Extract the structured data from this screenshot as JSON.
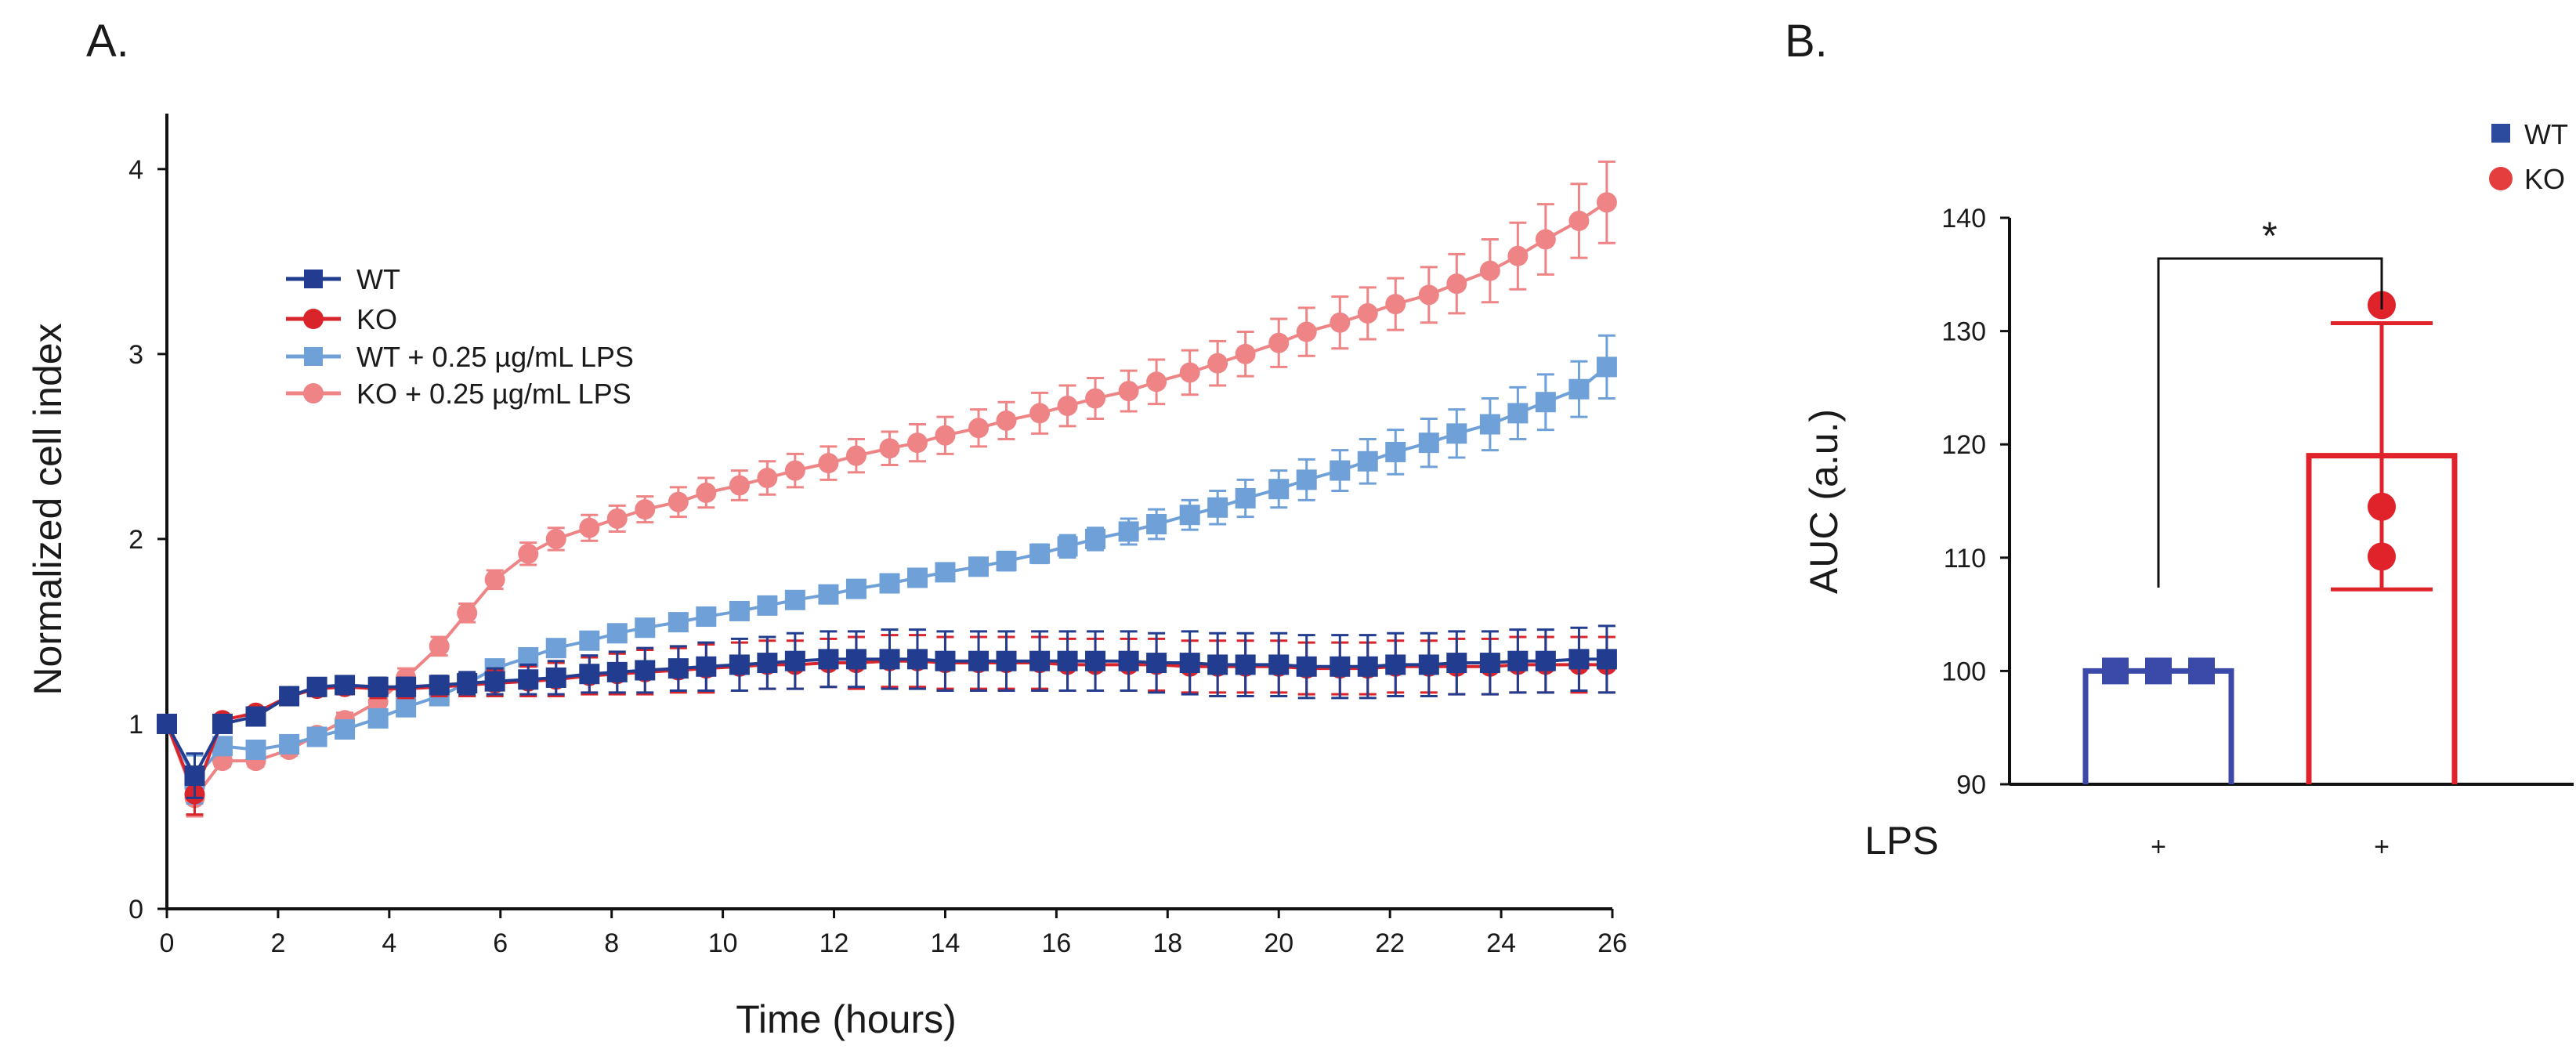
{
  "panels": {
    "a_label": "A.",
    "b_label": "B."
  },
  "chart_data": [
    {
      "type": "line",
      "title": "",
      "xlabel": "Time (hours)",
      "ylabel": "Normalized cell index",
      "xlim": [
        0,
        26
      ],
      "ylim": [
        0,
        4.3
      ],
      "x_ticks": [
        "0",
        "2",
        "4",
        "6",
        "8",
        "10",
        "12",
        "14",
        "16",
        "18",
        "20",
        "22",
        "24",
        "26"
      ],
      "y_ticks": [
        "0",
        "1",
        "2",
        "3",
        "4"
      ],
      "legend_position": "top-left",
      "series": [
        {
          "name": "WT",
          "color": "#223d8f",
          "marker": "square",
          "x": [
            0,
            0.5,
            1,
            1.6,
            2.2,
            2.7,
            3.2,
            3.8,
            4.3,
            4.9,
            5.4,
            5.9,
            6.5,
            7.0,
            7.6,
            8.1,
            8.6,
            9.2,
            9.7,
            10.3,
            10.8,
            11.3,
            11.9,
            12.4,
            13.0,
            13.5,
            14.0,
            14.6,
            15.1,
            15.7,
            16.2,
            16.7,
            17.3,
            17.8,
            18.4,
            18.9,
            19.4,
            20.0,
            20.5,
            21.1,
            21.6,
            22.1,
            22.7,
            23.2,
            23.8,
            24.3,
            24.8,
            25.4,
            25.9
          ],
          "values": [
            1.0,
            0.72,
            1.0,
            1.04,
            1.15,
            1.2,
            1.21,
            1.2,
            1.2,
            1.21,
            1.22,
            1.23,
            1.24,
            1.25,
            1.27,
            1.28,
            1.29,
            1.3,
            1.31,
            1.32,
            1.33,
            1.34,
            1.35,
            1.35,
            1.35,
            1.35,
            1.34,
            1.34,
            1.34,
            1.34,
            1.34,
            1.34,
            1.34,
            1.33,
            1.33,
            1.32,
            1.32,
            1.32,
            1.31,
            1.31,
            1.31,
            1.32,
            1.32,
            1.33,
            1.33,
            1.34,
            1.34,
            1.35,
            1.35
          ],
          "errors": [
            0,
            0.12,
            0.02,
            0.03,
            0.04,
            0.04,
            0.04,
            0.05,
            0.05,
            0.05,
            0.06,
            0.07,
            0.08,
            0.09,
            0.1,
            0.11,
            0.12,
            0.12,
            0.13,
            0.14,
            0.14,
            0.15,
            0.15,
            0.15,
            0.16,
            0.16,
            0.16,
            0.16,
            0.16,
            0.16,
            0.16,
            0.16,
            0.16,
            0.16,
            0.17,
            0.17,
            0.17,
            0.17,
            0.17,
            0.17,
            0.17,
            0.17,
            0.17,
            0.17,
            0.17,
            0.17,
            0.17,
            0.17,
            0.18
          ]
        },
        {
          "name": "KO",
          "color": "#d9242b",
          "marker": "circle",
          "x": [
            0,
            0.5,
            1,
            1.6,
            2.2,
            2.7,
            3.2,
            3.8,
            4.3,
            4.9,
            5.4,
            5.9,
            6.5,
            7.0,
            7.6,
            8.1,
            8.6,
            9.2,
            9.7,
            10.3,
            10.8,
            11.3,
            11.9,
            12.4,
            13.0,
            13.5,
            14.0,
            14.6,
            15.1,
            15.7,
            16.2,
            16.7,
            17.3,
            17.8,
            18.4,
            18.9,
            19.4,
            20.0,
            20.5,
            21.1,
            21.6,
            22.1,
            22.7,
            23.2,
            23.8,
            24.3,
            24.8,
            25.4,
            25.9
          ],
          "values": [
            1.0,
            0.62,
            1.02,
            1.06,
            1.15,
            1.19,
            1.2,
            1.19,
            1.19,
            1.2,
            1.21,
            1.22,
            1.23,
            1.24,
            1.26,
            1.27,
            1.28,
            1.29,
            1.3,
            1.31,
            1.32,
            1.32,
            1.33,
            1.33,
            1.34,
            1.34,
            1.33,
            1.33,
            1.33,
            1.33,
            1.32,
            1.32,
            1.32,
            1.32,
            1.31,
            1.31,
            1.31,
            1.31,
            1.3,
            1.3,
            1.3,
            1.31,
            1.31,
            1.31,
            1.31,
            1.32,
            1.32,
            1.32,
            1.32
          ],
          "errors": [
            0,
            0.11,
            0.02,
            0.03,
            0.04,
            0.04,
            0.04,
            0.05,
            0.05,
            0.05,
            0.06,
            0.07,
            0.08,
            0.09,
            0.1,
            0.11,
            0.12,
            0.12,
            0.13,
            0.13,
            0.13,
            0.13,
            0.13,
            0.14,
            0.14,
            0.14,
            0.14,
            0.14,
            0.14,
            0.14,
            0.14,
            0.14,
            0.14,
            0.14,
            0.14,
            0.14,
            0.14,
            0.14,
            0.14,
            0.14,
            0.14,
            0.14,
            0.14,
            0.15,
            0.15,
            0.15,
            0.15,
            0.15,
            0.15
          ]
        },
        {
          "name": "WT + 0.25 µg/mL LPS",
          "color": "#6fa1d8",
          "marker": "square",
          "x": [
            0,
            0.5,
            1,
            1.6,
            2.2,
            2.7,
            3.2,
            3.8,
            4.3,
            4.9,
            5.4,
            5.9,
            6.5,
            7.0,
            7.6,
            8.1,
            8.6,
            9.2,
            9.7,
            10.3,
            10.8,
            11.3,
            11.9,
            12.4,
            13.0,
            13.5,
            14.0,
            14.6,
            15.1,
            15.7,
            16.2,
            16.7,
            17.3,
            17.8,
            18.4,
            18.9,
            19.4,
            20.0,
            20.5,
            21.1,
            21.6,
            22.1,
            22.7,
            23.2,
            23.8,
            24.3,
            24.8,
            25.4,
            25.9
          ],
          "values": [
            1.0,
            0.7,
            0.88,
            0.86,
            0.89,
            0.93,
            0.97,
            1.03,
            1.09,
            1.15,
            1.22,
            1.3,
            1.36,
            1.41,
            1.45,
            1.49,
            1.52,
            1.55,
            1.58,
            1.61,
            1.64,
            1.67,
            1.7,
            1.73,
            1.76,
            1.79,
            1.82,
            1.85,
            1.88,
            1.92,
            1.96,
            2.0,
            2.04,
            2.08,
            2.13,
            2.17,
            2.22,
            2.27,
            2.32,
            2.37,
            2.42,
            2.47,
            2.52,
            2.57,
            2.62,
            2.68,
            2.74,
            2.81,
            2.93
          ],
          "errors": [
            0,
            0.13,
            0.03,
            0.03,
            0.03,
            0.03,
            0.03,
            0.03,
            0.03,
            0.03,
            0.03,
            0.03,
            0.03,
            0.03,
            0.03,
            0.03,
            0.03,
            0.03,
            0.03,
            0.03,
            0.03,
            0.03,
            0.03,
            0.03,
            0.03,
            0.03,
            0.04,
            0.04,
            0.05,
            0.05,
            0.06,
            0.06,
            0.07,
            0.08,
            0.08,
            0.09,
            0.1,
            0.1,
            0.11,
            0.11,
            0.12,
            0.12,
            0.13,
            0.13,
            0.14,
            0.14,
            0.15,
            0.15,
            0.17
          ]
        },
        {
          "name": "KO + 0.25 µg/mL LPS",
          "color": "#ee8485",
          "marker": "circle",
          "x": [
            0,
            0.5,
            1,
            1.6,
            2.2,
            2.7,
            3.2,
            3.8,
            4.3,
            4.9,
            5.4,
            5.9,
            6.5,
            7.0,
            7.6,
            8.1,
            8.6,
            9.2,
            9.7,
            10.3,
            10.8,
            11.3,
            11.9,
            12.4,
            13.0,
            13.5,
            14.0,
            14.6,
            15.1,
            15.7,
            16.2,
            16.7,
            17.3,
            17.8,
            18.4,
            18.9,
            19.4,
            20.0,
            20.5,
            21.1,
            21.6,
            22.1,
            22.7,
            23.2,
            23.8,
            24.3,
            24.8,
            25.4,
            25.9
          ],
          "values": [
            1.0,
            0.6,
            0.8,
            0.8,
            0.86,
            0.94,
            1.02,
            1.12,
            1.25,
            1.42,
            1.6,
            1.78,
            1.92,
            2.0,
            2.06,
            2.11,
            2.16,
            2.2,
            2.25,
            2.29,
            2.33,
            2.37,
            2.41,
            2.45,
            2.49,
            2.52,
            2.56,
            2.6,
            2.64,
            2.68,
            2.72,
            2.76,
            2.8,
            2.85,
            2.9,
            2.95,
            3.0,
            3.06,
            3.12,
            3.17,
            3.22,
            3.27,
            3.32,
            3.38,
            3.45,
            3.53,
            3.62,
            3.72,
            3.82
          ],
          "errors": [
            0,
            0.1,
            0.03,
            0.03,
            0.03,
            0.03,
            0.04,
            0.05,
            0.05,
            0.05,
            0.05,
            0.05,
            0.06,
            0.06,
            0.07,
            0.07,
            0.07,
            0.08,
            0.08,
            0.08,
            0.09,
            0.09,
            0.09,
            0.09,
            0.09,
            0.1,
            0.1,
            0.1,
            0.1,
            0.11,
            0.11,
            0.11,
            0.11,
            0.12,
            0.12,
            0.12,
            0.12,
            0.13,
            0.13,
            0.14,
            0.14,
            0.14,
            0.15,
            0.16,
            0.17,
            0.18,
            0.19,
            0.2,
            0.22
          ]
        }
      ]
    },
    {
      "type": "bar",
      "title": "",
      "xlabel": "",
      "ylabel": "AUC (a.u.)",
      "ylim": [
        90,
        140
      ],
      "y_ticks": [
        "90",
        "100",
        "110",
        "120",
        "130",
        "140"
      ],
      "row_label": "LPS",
      "categories": [
        "WT",
        "KO"
      ],
      "category_marks": [
        "+",
        "+"
      ],
      "values": [
        100,
        119
      ],
      "error_low": [
        100,
        107.2
      ],
      "error_high": [
        100,
        130.7
      ],
      "points": [
        [
          100,
          100,
          100
        ],
        [
          132.3,
          114.5,
          110.1
        ]
      ],
      "colors": [
        "#3b4aa8",
        "#e0232b"
      ],
      "markers": [
        "square",
        "circle"
      ],
      "significance": "*",
      "legend_position": "top-right",
      "legend": [
        {
          "name": "WT",
          "color": "#2c4a9e",
          "marker": "square"
        },
        {
          "name": "KO",
          "color": "#e53e3e",
          "marker": "circle"
        }
      ]
    }
  ]
}
